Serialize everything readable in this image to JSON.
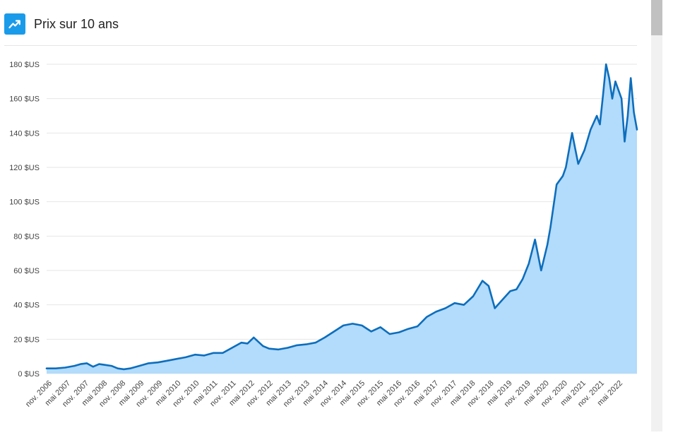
{
  "header": {
    "title": "Prix sur 10 ans",
    "icon": "trending-up-icon",
    "icon_color": "#1a9bea"
  },
  "colors": {
    "line": "#0d6ebc",
    "fill": "#b3dbfb",
    "grid": "#e6e6e6"
  },
  "chart_data": {
    "type": "area",
    "title": "Prix sur 10 ans",
    "xlabel": "",
    "ylabel": "",
    "ylim": [
      0,
      180
    ],
    "y_ticks": [
      0,
      20,
      40,
      60,
      80,
      100,
      120,
      140,
      160,
      180
    ],
    "y_tick_labels": [
      "0 $US",
      "20 $US",
      "40 $US",
      "60 $US",
      "80 $US",
      "100 $US",
      "120 $US",
      "140 $US",
      "160 $US",
      "180 $US"
    ],
    "x_tick_labels": [
      "nov. 2006",
      "mai 2007",
      "nov. 2007",
      "mai 2008",
      "nov. 2008",
      "mai 2009",
      "nov. 2009",
      "mai 2010",
      "nov. 2010",
      "mai 2011",
      "nov. 2011",
      "mai 2012",
      "nov. 2012",
      "mai 2013",
      "nov. 2013",
      "mai 2014",
      "nov. 2014",
      "mai 2015",
      "nov. 2015",
      "mai 2016",
      "nov. 2016",
      "mai 2017",
      "nov. 2017",
      "mai 2018",
      "nov. 2018",
      "mai 2019",
      "nov. 2019",
      "mai 2020",
      "nov. 2020",
      "mai 2021",
      "nov. 2021",
      "mai 2022"
    ],
    "x_range": [
      "2006-11",
      "2022-10"
    ],
    "grid": true,
    "legend": "none",
    "series": [
      {
        "x": [
          "2006-11",
          "2007-02",
          "2007-05",
          "2007-08",
          "2007-10",
          "2007-12",
          "2008-02",
          "2008-04",
          "2008-06",
          "2008-08",
          "2008-10",
          "2008-12",
          "2009-02",
          "2009-05",
          "2009-08",
          "2009-11",
          "2010-02",
          "2010-05",
          "2010-08",
          "2010-11",
          "2011-02",
          "2011-05",
          "2011-08",
          "2011-11",
          "2012-02",
          "2012-04",
          "2012-06",
          "2012-09",
          "2012-11",
          "2013-02",
          "2013-05",
          "2013-08",
          "2013-11",
          "2014-02",
          "2014-05",
          "2014-08",
          "2014-11",
          "2015-02",
          "2015-05",
          "2015-08",
          "2015-11",
          "2016-02",
          "2016-05",
          "2016-08",
          "2016-11",
          "2017-02",
          "2017-05",
          "2017-08",
          "2017-11",
          "2018-02",
          "2018-05",
          "2018-08",
          "2018-10",
          "2018-12",
          "2019-02",
          "2019-05",
          "2019-07",
          "2019-09",
          "2019-11",
          "2020-01",
          "2020-03",
          "2020-05",
          "2020-06",
          "2020-08",
          "2020-10",
          "2020-11",
          "2021-01",
          "2021-03",
          "2021-05",
          "2021-07",
          "2021-09",
          "2021-10",
          "2021-11",
          "2021-12",
          "2022-01",
          "2022-02",
          "2022-03",
          "2022-05",
          "2022-06",
          "2022-07",
          "2022-08",
          "2022-09",
          "2022-10"
        ],
        "values": [
          3,
          3,
          3.5,
          4.5,
          5.5,
          6,
          4,
          5.5,
          5,
          4.5,
          3,
          2.5,
          3,
          4.5,
          6,
          6.5,
          7.5,
          8.5,
          9.5,
          11,
          10.5,
          12,
          12,
          15,
          18,
          17.5,
          21,
          16,
          14.5,
          14,
          15,
          16.5,
          17,
          18,
          21,
          24.5,
          28,
          29,
          28,
          24.5,
          27,
          23,
          24,
          26,
          27.5,
          33,
          36,
          38,
          41,
          40,
          45,
          54,
          51,
          38,
          42,
          48,
          49,
          55,
          64,
          78,
          60,
          75,
          85,
          110,
          115,
          120,
          140,
          122,
          130,
          142,
          150,
          145,
          162,
          180,
          172,
          160,
          170,
          160,
          135,
          150,
          172,
          152,
          142
        ]
      }
    ]
  }
}
